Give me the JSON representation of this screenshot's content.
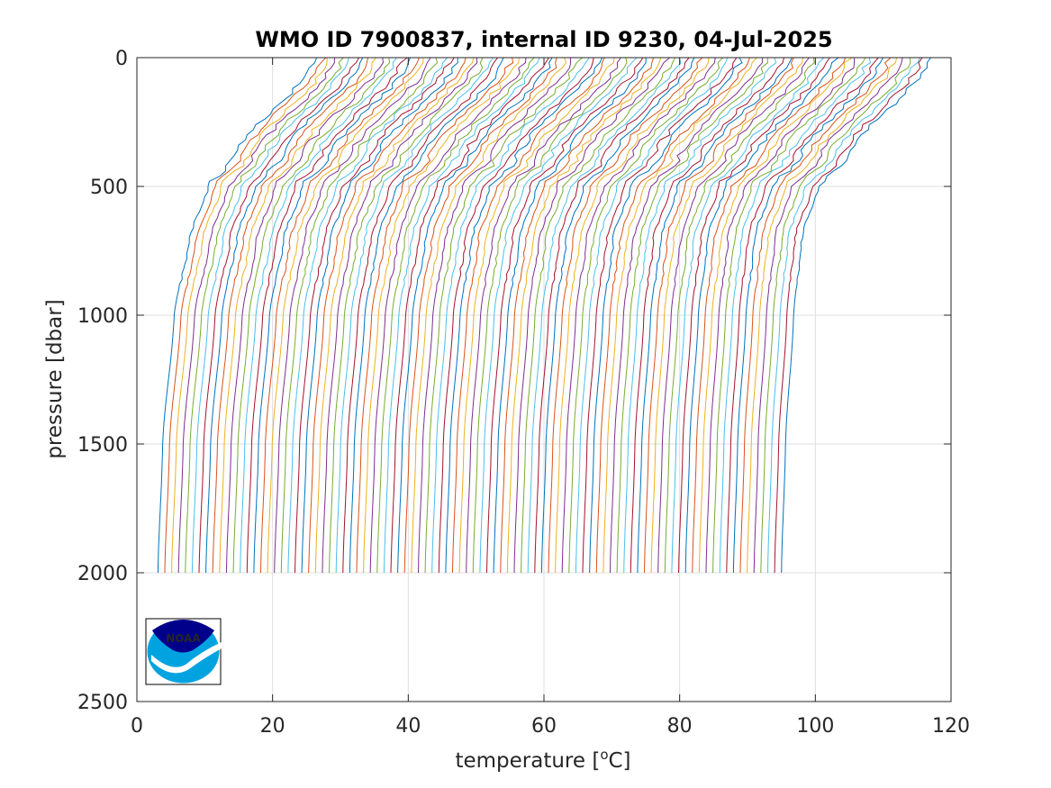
{
  "chart_data": {
    "type": "line",
    "title": "WMO ID 7900837, internal ID 9230, 04-Jul-2025",
    "xlabel": {
      "pre": "temperature [",
      "sup": "o",
      "post": "C]"
    },
    "ylabel": "pressure [dbar]",
    "xlim": [
      0,
      120
    ],
    "ylim": [
      0,
      2500
    ],
    "y_reversed": true,
    "grid": true,
    "xticks": [
      0,
      20,
      40,
      60,
      80,
      100,
      120
    ],
    "yticks": [
      0,
      500,
      1000,
      1500,
      2000,
      2500
    ],
    "xtick_labels": [
      "0",
      "20",
      "40",
      "60",
      "80",
      "100",
      "120"
    ],
    "ytick_labels": [
      "0",
      "500",
      "1000",
      "1500",
      "2000",
      "2500"
    ],
    "series_description": "Stacked temperature profiles, each offset horizontally by about 1 °C; each profile is defined by temperature at pressures 0, 400, 500, 700, 1000, 1500, 2000 dbar",
    "pressure_levels": [
      0,
      400,
      500,
      700,
      1000,
      1500,
      2000
    ],
    "profile_count": 92,
    "first_profile": {
      "temperature": [
        26.5,
        14.0,
        10.5,
        7.8,
        5.5,
        3.8,
        3.1
      ]
    },
    "last_profile": {
      "temperature": [
        117.0,
        104.5,
        100.5,
        98.0,
        96.8,
        95.6,
        95.0
      ]
    },
    "colors": [
      "#0072BD",
      "#D95319",
      "#EDB120",
      "#7E2F8E",
      "#77AC30",
      "#4DBEEE",
      "#A2142F"
    ]
  },
  "logo": {
    "text": "NOAA",
    "colors": {
      "dark": "#00008B",
      "light": "#00A3E0"
    }
  }
}
